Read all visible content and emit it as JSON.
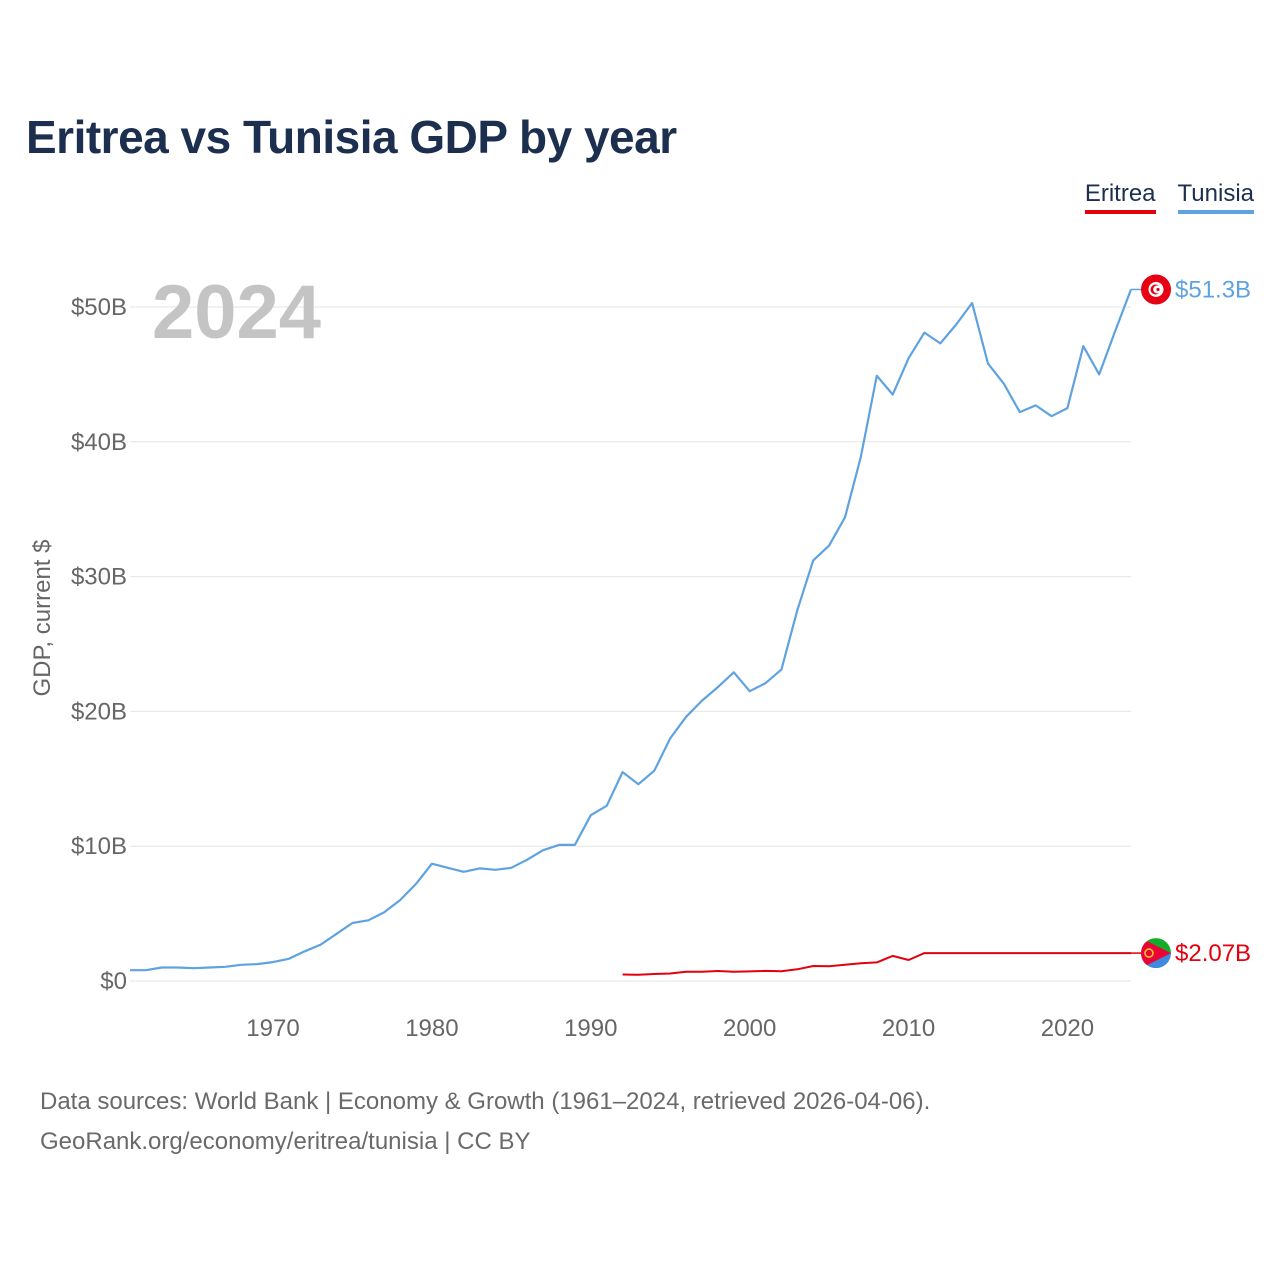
{
  "title": "Eritrea vs Tunisia GDP by year",
  "legend": {
    "eritrea": "Eritrea",
    "tunisia": "Tunisia"
  },
  "colors": {
    "eritrea": "#e3000f",
    "tunisia": "#5ea2e0",
    "grid": "#e6e6e6",
    "tick": "#666666",
    "year_label": "#c4c4c4"
  },
  "footer": {
    "line1": "Data sources: World Bank | Economy & Growth (1961–2024, retrieved 2026-04-06).",
    "line2": "GeoRank.org/economy/eritrea/tunisia | CC BY"
  },
  "chart_data": {
    "type": "line",
    "title": "Eritrea vs Tunisia GDP by year",
    "ylabel": "GDP, current $",
    "xlabel": "",
    "current_year_label": "2024",
    "xlim": [
      1961,
      2024
    ],
    "ylim": [
      0,
      50
    ],
    "y_ticks": [
      0,
      10,
      20,
      30,
      40,
      50
    ],
    "y_tick_labels": [
      "$0",
      "$10B",
      "$20B",
      "$30B",
      "$40B",
      "$50B"
    ],
    "x_ticks": [
      1970,
      1980,
      1990,
      2000,
      2010,
      2020
    ],
    "x_tick_labels": [
      "1970",
      "1980",
      "1990",
      "2000",
      "2010",
      "2020"
    ],
    "series": [
      {
        "name": "Tunisia",
        "end_label": "$51.3B",
        "x": [
          1961,
          1962,
          1963,
          1964,
          1965,
          1966,
          1967,
          1968,
          1969,
          1970,
          1971,
          1972,
          1973,
          1974,
          1975,
          1976,
          1977,
          1978,
          1979,
          1980,
          1981,
          1982,
          1983,
          1984,
          1985,
          1986,
          1987,
          1988,
          1989,
          1990,
          1991,
          1992,
          1993,
          1994,
          1995,
          1996,
          1997,
          1998,
          1999,
          2000,
          2001,
          2002,
          2003,
          2004,
          2005,
          2006,
          2007,
          2008,
          2009,
          2010,
          2011,
          2012,
          2013,
          2014,
          2015,
          2016,
          2017,
          2018,
          2019,
          2020,
          2021,
          2022,
          2023,
          2024
        ],
        "values": [
          0.8,
          0.8,
          1.0,
          1.0,
          0.95,
          1.0,
          1.05,
          1.2,
          1.25,
          1.4,
          1.65,
          2.2,
          2.7,
          3.5,
          4.3,
          4.5,
          5.1,
          6.0,
          7.2,
          8.7,
          8.4,
          8.1,
          8.35,
          8.25,
          8.4,
          9.0,
          9.7,
          10.1,
          10.1,
          12.3,
          13.0,
          15.5,
          14.6,
          15.6,
          18.0,
          19.6,
          20.8,
          21.8,
          22.9,
          21.5,
          22.1,
          23.1,
          27.5,
          31.2,
          32.3,
          34.4,
          38.9,
          44.9,
          43.5,
          46.2,
          48.1,
          47.3,
          48.7,
          50.3,
          45.8,
          44.3,
          42.2,
          42.7,
          41.9,
          42.5,
          47.1,
          45.0,
          48.2,
          51.3
        ]
      },
      {
        "name": "Eritrea",
        "end_label": "$2.07B",
        "x": [
          1992,
          1993,
          1994,
          1995,
          1996,
          1997,
          1998,
          1999,
          2000,
          2001,
          2002,
          2003,
          2004,
          2005,
          2006,
          2007,
          2008,
          2009,
          2010,
          2011,
          2012,
          2013,
          2014,
          2015,
          2016,
          2017,
          2018,
          2019,
          2020,
          2021,
          2022,
          2023,
          2024
        ],
        "values": [
          0.48,
          0.46,
          0.52,
          0.56,
          0.68,
          0.69,
          0.74,
          0.68,
          0.71,
          0.75,
          0.73,
          0.87,
          1.11,
          1.1,
          1.21,
          1.32,
          1.38,
          1.86,
          1.56,
          2.07,
          2.07,
          2.07,
          2.07,
          2.07,
          2.07,
          2.07,
          2.07,
          2.07,
          2.07,
          2.07,
          2.07,
          2.07,
          2.07
        ]
      }
    ]
  }
}
